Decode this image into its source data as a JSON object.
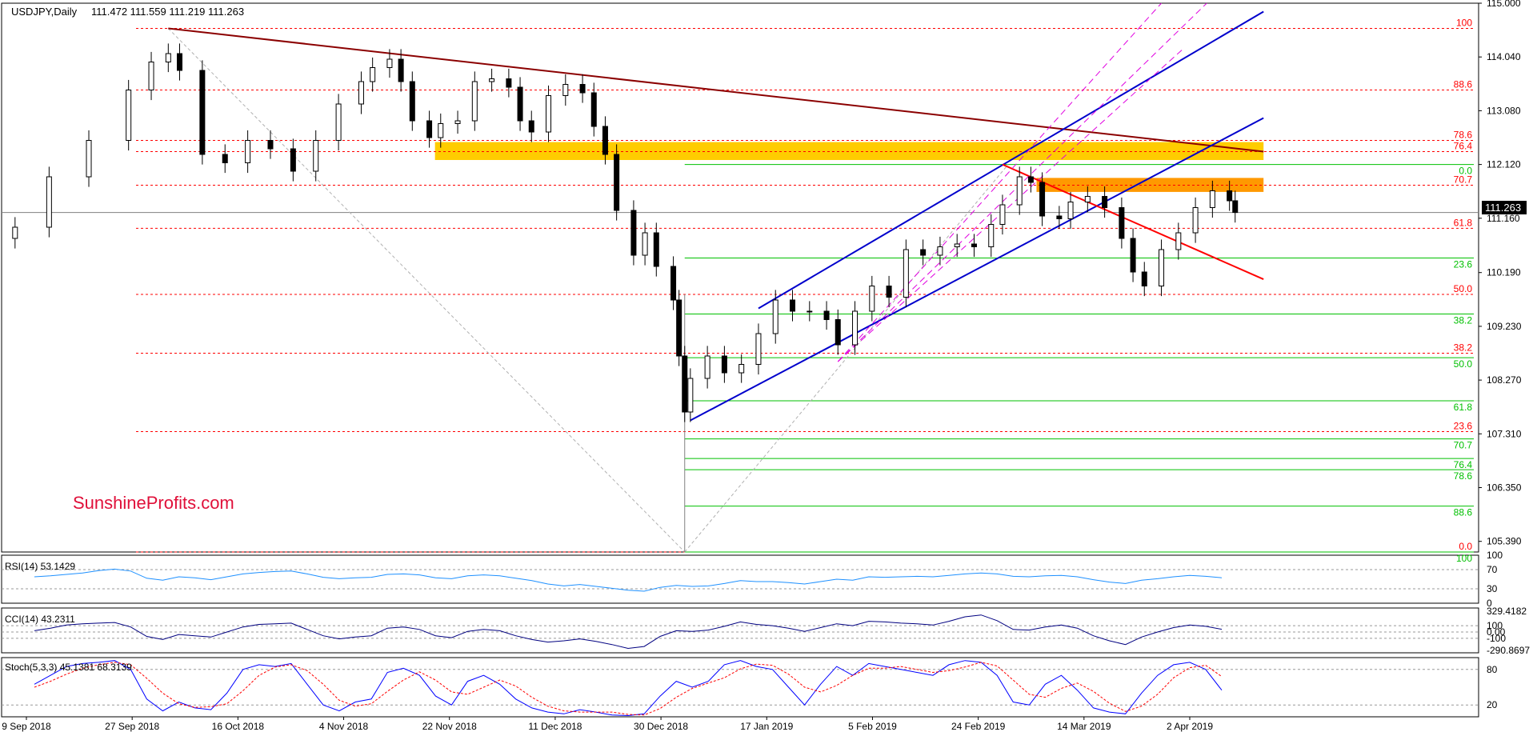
{
  "header": {
    "symbol": "USDJPY,Daily",
    "ohlc": "111.472 111.559 111.219 111.263"
  },
  "watermark": "SunshineProfits.com",
  "price_badge": "111.263",
  "colors": {
    "background": "#ffffff",
    "axis": "#000000",
    "candle_up": "#ffffff",
    "candle_down": "#000000",
    "fib_red": "#ff0000",
    "fib_green": "#00c000",
    "trend_down": "#8b0000",
    "channel": "#0000cc",
    "resistance": "#ff0000",
    "fork": "#e000e0",
    "zone_yellow": "#ffcc00",
    "zone_orange": "#ff9900",
    "rsi": "#1e90ff",
    "cci": "#000080",
    "stoch_main": "#0000ff",
    "stoch_signal": "#ff0000",
    "watermark": "#e0103a"
  },
  "chart_data": [
    {
      "type": "candlestick",
      "title": "USDJPY,Daily",
      "y_ticks": [
        "115.000",
        "114.040",
        "113.080",
        "112.120",
        "111.160",
        "110.190",
        "109.230",
        "108.270",
        "107.310",
        "106.350",
        "105.390"
      ],
      "x_ticks": [
        "9 Sep 2018",
        "27 Sep 2018",
        "16 Oct 2018",
        "4 Nov 2018",
        "22 Nov 2018",
        "11 Dec 2018",
        "30 Dec 2018",
        "17 Jan 2019",
        "5 Feb 2019",
        "24 Feb 2019",
        "14 Mar 2019",
        "2 Apr 2019"
      ],
      "ylim": [
        105.2,
        115.0
      ],
      "current_price": 111.263,
      "swing_high": {
        "date": "2018-10-04",
        "value": 114.55
      },
      "swing_low": {
        "date": "2019-01-03",
        "value": 105.2
      },
      "fib_red_levels": [
        {
          "label": "100",
          "value": 114.55
        },
        {
          "label": "88.6",
          "value": 113.45
        },
        {
          "label": "78.6",
          "value": 112.55
        },
        {
          "label": "76.4",
          "value": 112.35
        },
        {
          "label": "70.7",
          "value": 111.75
        },
        {
          "label": "61.8",
          "value": 110.98
        },
        {
          "label": "50.0",
          "value": 109.8
        },
        {
          "label": "38.2",
          "value": 108.75
        },
        {
          "label": "23.6",
          "value": 107.35
        },
        {
          "label": "0.0",
          "value": 105.2
        }
      ],
      "fib_green_levels": [
        {
          "label": "0.0",
          "value": 112.12
        },
        {
          "label": "23.6",
          "value": 110.45
        },
        {
          "label": "38.2",
          "value": 109.45
        },
        {
          "label": "50.0",
          "value": 108.67
        },
        {
          "label": "61.8",
          "value": 107.9
        },
        {
          "label": "70.7",
          "value": 107.22
        },
        {
          "label": "76.4",
          "value": 106.87
        },
        {
          "label": "78.6",
          "value": 106.67
        },
        {
          "label": "88.6",
          "value": 106.02
        },
        {
          "label": "100",
          "value": 105.2
        }
      ],
      "zones": [
        {
          "from": "2018-11-20",
          "to": "2019-04-15",
          "low": 112.2,
          "high": 112.52,
          "color": "yellow"
        },
        {
          "from": "2019-03-06",
          "to": "2019-04-15",
          "low": 111.63,
          "high": 111.88,
          "color": "orange"
        }
      ],
      "trendlines": [
        {
          "name": "downtrend",
          "from": [
            "2018-10-04",
            114.55
          ],
          "to": [
            "2019-04-15",
            112.35
          ],
          "color": "trend_down"
        },
        {
          "name": "channel-lower",
          "from": [
            "2019-01-04",
            107.55
          ],
          "to": [
            "2019-04-15",
            112.95
          ],
          "color": "channel"
        },
        {
          "name": "channel-upper",
          "from": [
            "2019-01-16",
            109.55
          ],
          "to": [
            "2019-04-15",
            114.85
          ],
          "color": "channel"
        },
        {
          "name": "resistance",
          "from": [
            "2019-02-28",
            112.12
          ],
          "to": [
            "2019-04-15",
            110.07
          ],
          "color": "resistance"
        },
        {
          "name": "fork-upper",
          "from": [
            "2019-01-30",
            108.6
          ],
          "to": [
            "2019-04-05",
            115.0
          ],
          "color": "fork"
        },
        {
          "name": "fork-lower",
          "from": [
            "2019-01-30",
            108.6
          ],
          "to": [
            "2019-03-28",
            115.0
          ],
          "color": "fork"
        },
        {
          "name": "fork-mid",
          "from": [
            "2019-01-30",
            108.6
          ],
          "to": [
            "2019-04-01",
            114.2
          ],
          "color": "fork"
        }
      ],
      "close_series": [
        {
          "date": "2018-09-07",
          "close": 111.0
        },
        {
          "date": "2018-09-13",
          "close": 111.9
        },
        {
          "date": "2018-09-20",
          "close": 112.55
        },
        {
          "date": "2018-09-27",
          "close": 113.45
        },
        {
          "date": "2018-10-01",
          "close": 113.95
        },
        {
          "date": "2018-10-04",
          "close": 114.1
        },
        {
          "date": "2018-10-06",
          "close": 113.8
        },
        {
          "date": "2018-10-10",
          "close": 112.3
        },
        {
          "date": "2018-10-14",
          "close": 112.15
        },
        {
          "date": "2018-10-18",
          "close": 112.55
        },
        {
          "date": "2018-10-22",
          "close": 112.4
        },
        {
          "date": "2018-10-26",
          "close": 112.0
        },
        {
          "date": "2018-10-30",
          "close": 112.55
        },
        {
          "date": "2018-11-03",
          "close": 113.2
        },
        {
          "date": "2018-11-07",
          "close": 113.6
        },
        {
          "date": "2018-11-09",
          "close": 113.85
        },
        {
          "date": "2018-11-12",
          "close": 114.0
        },
        {
          "date": "2018-11-14",
          "close": 113.6
        },
        {
          "date": "2018-11-16",
          "close": 112.9
        },
        {
          "date": "2018-11-19",
          "close": 112.6
        },
        {
          "date": "2018-11-21",
          "close": 112.85
        },
        {
          "date": "2018-11-24",
          "close": 112.9
        },
        {
          "date": "2018-11-27",
          "close": 113.6
        },
        {
          "date": "2018-11-30",
          "close": 113.65
        },
        {
          "date": "2018-12-03",
          "close": 113.5
        },
        {
          "date": "2018-12-05",
          "close": 112.9
        },
        {
          "date": "2018-12-07",
          "close": 112.7
        },
        {
          "date": "2018-12-10",
          "close": 113.35
        },
        {
          "date": "2018-12-13",
          "close": 113.55
        },
        {
          "date": "2018-12-16",
          "close": 113.4
        },
        {
          "date": "2018-12-18",
          "close": 112.8
        },
        {
          "date": "2018-12-20",
          "close": 112.3
        },
        {
          "date": "2018-12-22",
          "close": 111.3
        },
        {
          "date": "2018-12-25",
          "close": 110.5
        },
        {
          "date": "2018-12-27",
          "close": 110.9
        },
        {
          "date": "2018-12-29",
          "close": 110.3
        },
        {
          "date": "2019-01-01",
          "close": 109.7
        },
        {
          "date": "2019-01-02",
          "close": 108.7
        },
        {
          "date": "2019-01-03",
          "close": 107.7
        },
        {
          "date": "2019-01-04",
          "close": 108.3
        },
        {
          "date": "2019-01-07",
          "close": 108.7
        },
        {
          "date": "2019-01-10",
          "close": 108.4
        },
        {
          "date": "2019-01-13",
          "close": 108.55
        },
        {
          "date": "2019-01-16",
          "close": 109.1
        },
        {
          "date": "2019-01-19",
          "close": 109.7
        },
        {
          "date": "2019-01-22",
          "close": 109.5
        },
        {
          "date": "2019-01-25",
          "close": 109.5
        },
        {
          "date": "2019-01-28",
          "close": 109.35
        },
        {
          "date": "2019-01-30",
          "close": 108.9
        },
        {
          "date": "2019-02-02",
          "close": 109.5
        },
        {
          "date": "2019-02-05",
          "close": 109.95
        },
        {
          "date": "2019-02-08",
          "close": 109.75
        },
        {
          "date": "2019-02-11",
          "close": 110.6
        },
        {
          "date": "2019-02-14",
          "close": 110.5
        },
        {
          "date": "2019-02-17",
          "close": 110.65
        },
        {
          "date": "2019-02-20",
          "close": 110.7
        },
        {
          "date": "2019-02-23",
          "close": 110.65
        },
        {
          "date": "2019-02-26",
          "close": 111.05
        },
        {
          "date": "2019-02-28",
          "close": 111.4
        },
        {
          "date": "2019-03-03",
          "close": 111.9
        },
        {
          "date": "2019-03-05",
          "close": 111.8
        },
        {
          "date": "2019-03-07",
          "close": 111.2
        },
        {
          "date": "2019-03-10",
          "close": 111.15
        },
        {
          "date": "2019-03-12",
          "close": 111.45
        },
        {
          "date": "2019-03-15",
          "close": 111.55
        },
        {
          "date": "2019-03-18",
          "close": 111.35
        },
        {
          "date": "2019-03-21",
          "close": 110.8
        },
        {
          "date": "2019-03-23",
          "close": 110.2
        },
        {
          "date": "2019-03-25",
          "close": 109.95
        },
        {
          "date": "2019-03-28",
          "close": 110.6
        },
        {
          "date": "2019-03-31",
          "close": 110.9
        },
        {
          "date": "2019-04-03",
          "close": 111.35
        },
        {
          "date": "2019-04-06",
          "close": 111.65
        },
        {
          "date": "2019-04-09",
          "close": 111.472
        },
        {
          "date": "2019-04-10",
          "close": 111.263
        }
      ]
    },
    {
      "type": "line",
      "title": "RSI(14) 53.1429",
      "ylim": [
        0,
        100
      ],
      "y_ticks": [
        "100",
        "70",
        "30",
        "0"
      ],
      "levels": [
        70,
        30
      ],
      "series": [
        {
          "values": [
            55,
            57,
            60,
            63,
            68,
            71,
            67,
            52,
            48,
            55,
            53,
            49,
            55,
            61,
            64,
            66,
            67,
            61,
            54,
            51,
            53,
            54,
            60,
            61,
            59,
            53,
            51,
            57,
            59,
            57,
            52,
            47,
            40,
            36,
            39,
            35,
            31,
            27,
            25,
            33,
            37,
            35,
            36,
            41,
            47,
            45,
            45,
            43,
            40,
            45,
            50,
            48,
            55,
            54,
            55,
            56,
            55,
            58,
            61,
            63,
            61,
            56,
            55,
            57,
            58,
            55,
            49,
            44,
            41,
            48,
            51,
            55,
            58,
            56,
            53
          ]
        }
      ]
    },
    {
      "type": "line",
      "title": "CCI(14) 43.2311",
      "ylim": [
        -330,
        380
      ],
      "y_ticks": [
        "329.4182",
        "100",
        "0.00",
        "-100",
        "-290.8697"
      ],
      "levels": [
        100,
        0,
        -100
      ],
      "series": [
        {
          "values": [
            20,
            60,
            110,
            130,
            140,
            150,
            80,
            -70,
            -120,
            -40,
            -60,
            -80,
            0,
            80,
            120,
            130,
            140,
            40,
            -60,
            -110,
            -80,
            -60,
            60,
            80,
            40,
            -60,
            -90,
            10,
            40,
            20,
            -60,
            -120,
            -160,
            -140,
            -110,
            -150,
            -200,
            -260,
            -230,
            -70,
            20,
            10,
            30,
            90,
            160,
            120,
            100,
            60,
            10,
            70,
            130,
            100,
            170,
            160,
            140,
            130,
            110,
            170,
            240,
            270,
            180,
            40,
            30,
            80,
            110,
            60,
            -60,
            -140,
            -200,
            -80,
            0,
            70,
            110,
            90,
            43
          ]
        }
      ]
    },
    {
      "type": "line",
      "title": "Stoch(5,3,3) 45.1381 68.3139",
      "ylim": [
        0,
        100
      ],
      "y_ticks": [
        "80",
        "20"
      ],
      "levels": [
        80,
        20
      ],
      "series": [
        {
          "name": "main",
          "values": [
            55,
            70,
            85,
            90,
            92,
            95,
            80,
            30,
            10,
            25,
            15,
            12,
            40,
            80,
            88,
            85,
            90,
            55,
            20,
            10,
            25,
            30,
            75,
            82,
            70,
            35,
            20,
            60,
            70,
            55,
            30,
            15,
            8,
            5,
            12,
            8,
            3,
            2,
            5,
            35,
            60,
            50,
            60,
            88,
            95,
            85,
            80,
            50,
            20,
            55,
            85,
            70,
            90,
            85,
            80,
            75,
            70,
            88,
            95,
            92,
            70,
            25,
            20,
            55,
            70,
            45,
            15,
            8,
            5,
            40,
            70,
            88,
            92,
            80,
            45
          ]
        },
        {
          "name": "signal",
          "values": [
            50,
            60,
            72,
            82,
            88,
            92,
            88,
            65,
            40,
            22,
            16,
            17,
            22,
            44,
            70,
            84,
            88,
            78,
            55,
            28,
            18,
            22,
            43,
            62,
            76,
            62,
            42,
            38,
            50,
            62,
            52,
            33,
            18,
            10,
            8,
            8,
            8,
            4,
            3,
            14,
            33,
            48,
            57,
            66,
            81,
            89,
            87,
            72,
            50,
            42,
            53,
            70,
            82,
            82,
            85,
            80,
            75,
            78,
            84,
            92,
            86,
            62,
            38,
            33,
            48,
            57,
            43,
            23,
            9,
            18,
            38,
            66,
            83,
            87,
            68
          ]
        }
      ]
    }
  ]
}
